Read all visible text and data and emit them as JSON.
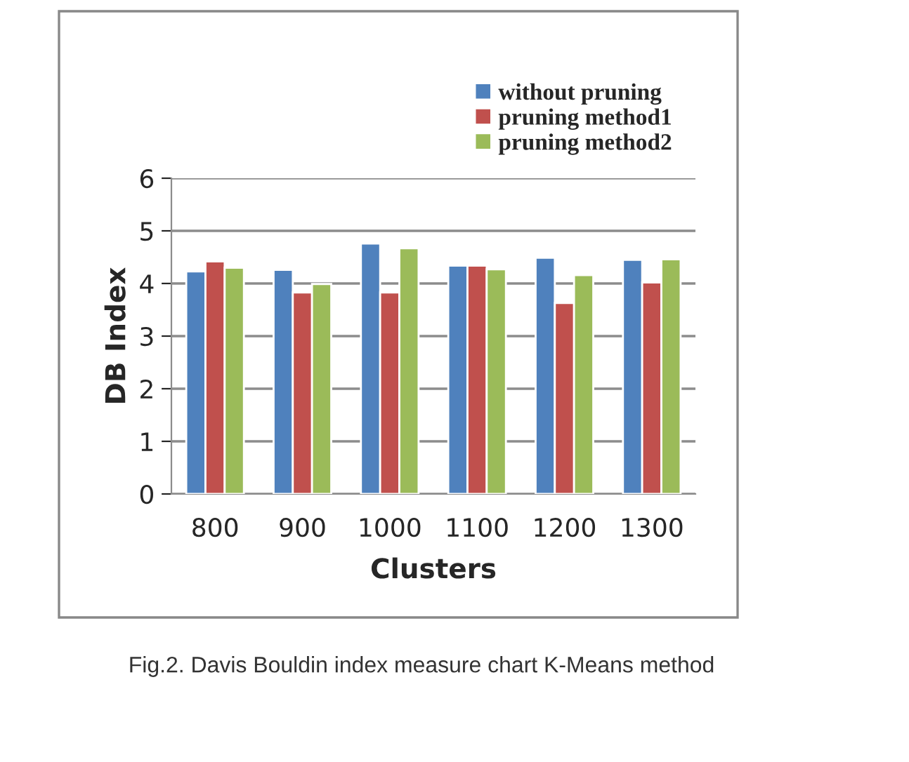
{
  "chart_data": {
    "type": "bar",
    "xlabel": "Clusters",
    "ylabel": "DB Index",
    "categories": [
      "800",
      "900",
      "1000",
      "1100",
      "1200",
      "1300"
    ],
    "series": [
      {
        "name": "without pruning",
        "color": "#4f81bd",
        "values": [
          4.23,
          4.26,
          4.76,
          4.34,
          4.49,
          4.45
        ]
      },
      {
        "name": "pruning method1",
        "color": "#c0504d",
        "values": [
          4.42,
          3.83,
          3.83,
          4.34,
          3.63,
          4.02
        ]
      },
      {
        "name": "pruning method2",
        "color": "#9bbb59",
        "values": [
          4.3,
          3.99,
          4.67,
          4.27,
          4.16,
          4.46
        ]
      }
    ],
    "ylim": [
      0,
      6
    ],
    "yticks": [
      0,
      1,
      2,
      3,
      4,
      5,
      6
    ],
    "grid": "y",
    "legend": "top right",
    "annotations": [
      "Fig.2. Davis Bouldin index measure chart K-Means method"
    ]
  }
}
